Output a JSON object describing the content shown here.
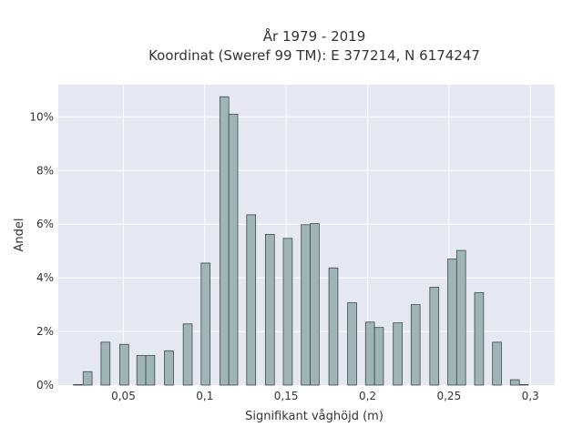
{
  "colors": {
    "plot_background": "#e5e8f0",
    "bar_fill": "#9fb5b5",
    "bar_edge": "#3b4a4a"
  },
  "chart_data": {
    "type": "bar",
    "title": "År 1979 - 2019",
    "subtitle": "Koordinat (Sweref 99 TM): E 377214, N 6174247",
    "xlabel": "Signifikant våghöjd (m)",
    "ylabel": "Andel",
    "xlim": [
      0.01,
      0.315
    ],
    "ylim": [
      0,
      11.2
    ],
    "x_ticks": [
      {
        "value": 0.05,
        "label": "0,05"
      },
      {
        "value": 0.1,
        "label": "0,1"
      },
      {
        "value": 0.15,
        "label": "0,15"
      },
      {
        "value": 0.2,
        "label": "0,2"
      },
      {
        "value": 0.25,
        "label": "0,25"
      },
      {
        "value": 0.3,
        "label": "0,3"
      }
    ],
    "y_ticks": [
      {
        "value": 0,
        "label": "0%"
      },
      {
        "value": 2,
        "label": "2%"
      },
      {
        "value": 4,
        "label": "4%"
      },
      {
        "value": 6,
        "label": "6%"
      },
      {
        "value": 8,
        "label": "8%"
      },
      {
        "value": 10,
        "label": "10%"
      }
    ],
    "bar_width": 0.0055,
    "grid": true,
    "x": [
      0.022,
      0.028,
      0.039,
      0.0505,
      0.061,
      0.0665,
      0.078,
      0.0895,
      0.1005,
      0.112,
      0.1175,
      0.1285,
      0.14,
      0.151,
      0.162,
      0.1675,
      0.179,
      0.1905,
      0.2015,
      0.207,
      0.2185,
      0.2295,
      0.241,
      0.252,
      0.2575,
      0.2685,
      0.2795,
      0.2905,
      0.296
    ],
    "values": [
      0.02,
      0.5,
      1.6,
      1.52,
      1.1,
      1.1,
      1.28,
      2.28,
      4.55,
      10.75,
      10.1,
      6.35,
      5.62,
      5.47,
      5.98,
      6.02,
      4.37,
      3.07,
      2.35,
      2.15,
      2.32,
      3.0,
      3.65,
      4.7,
      5.02,
      3.45,
      1.6,
      0.2,
      0.02
    ]
  }
}
